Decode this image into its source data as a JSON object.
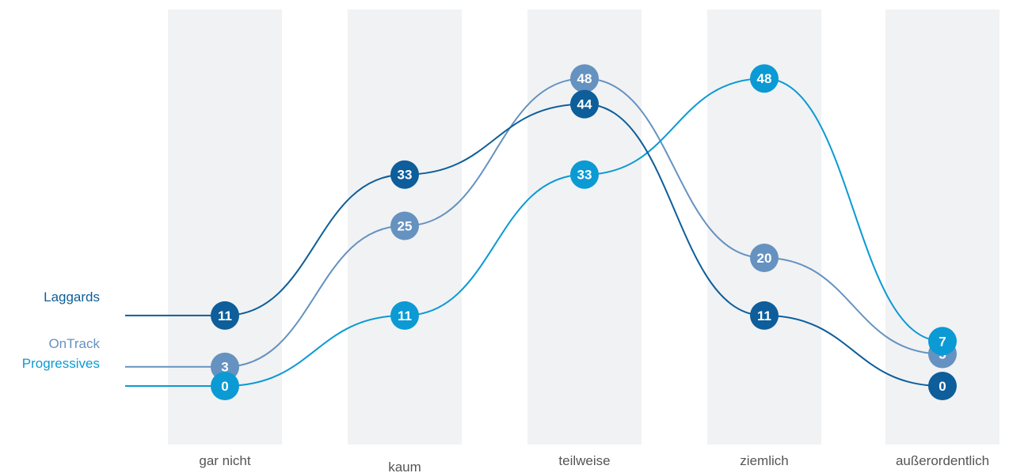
{
  "chart_data": {
    "type": "line",
    "categories": [
      "gar nicht",
      "kaum",
      "teilweise",
      "ziemlich",
      "außerordentlich"
    ],
    "series": [
      {
        "name": "Laggards",
        "values": [
          11,
          33,
          44,
          11,
          0
        ],
        "color": "#0d5e9a"
      },
      {
        "name": "OnTrack",
        "values": [
          3,
          25,
          48,
          20,
          5
        ],
        "color": "#6592c0"
      },
      {
        "name": "Progressives",
        "values": [
          0,
          11,
          33,
          48,
          7
        ],
        "color": "#0b9ad4"
      }
    ],
    "title": "",
    "xlabel": "",
    "ylabel": "",
    "ylim": [
      0,
      55
    ],
    "grid": false,
    "legend": "left, inline with lines",
    "band_color": "#f1f2f4",
    "category_text_color": "#555555"
  }
}
